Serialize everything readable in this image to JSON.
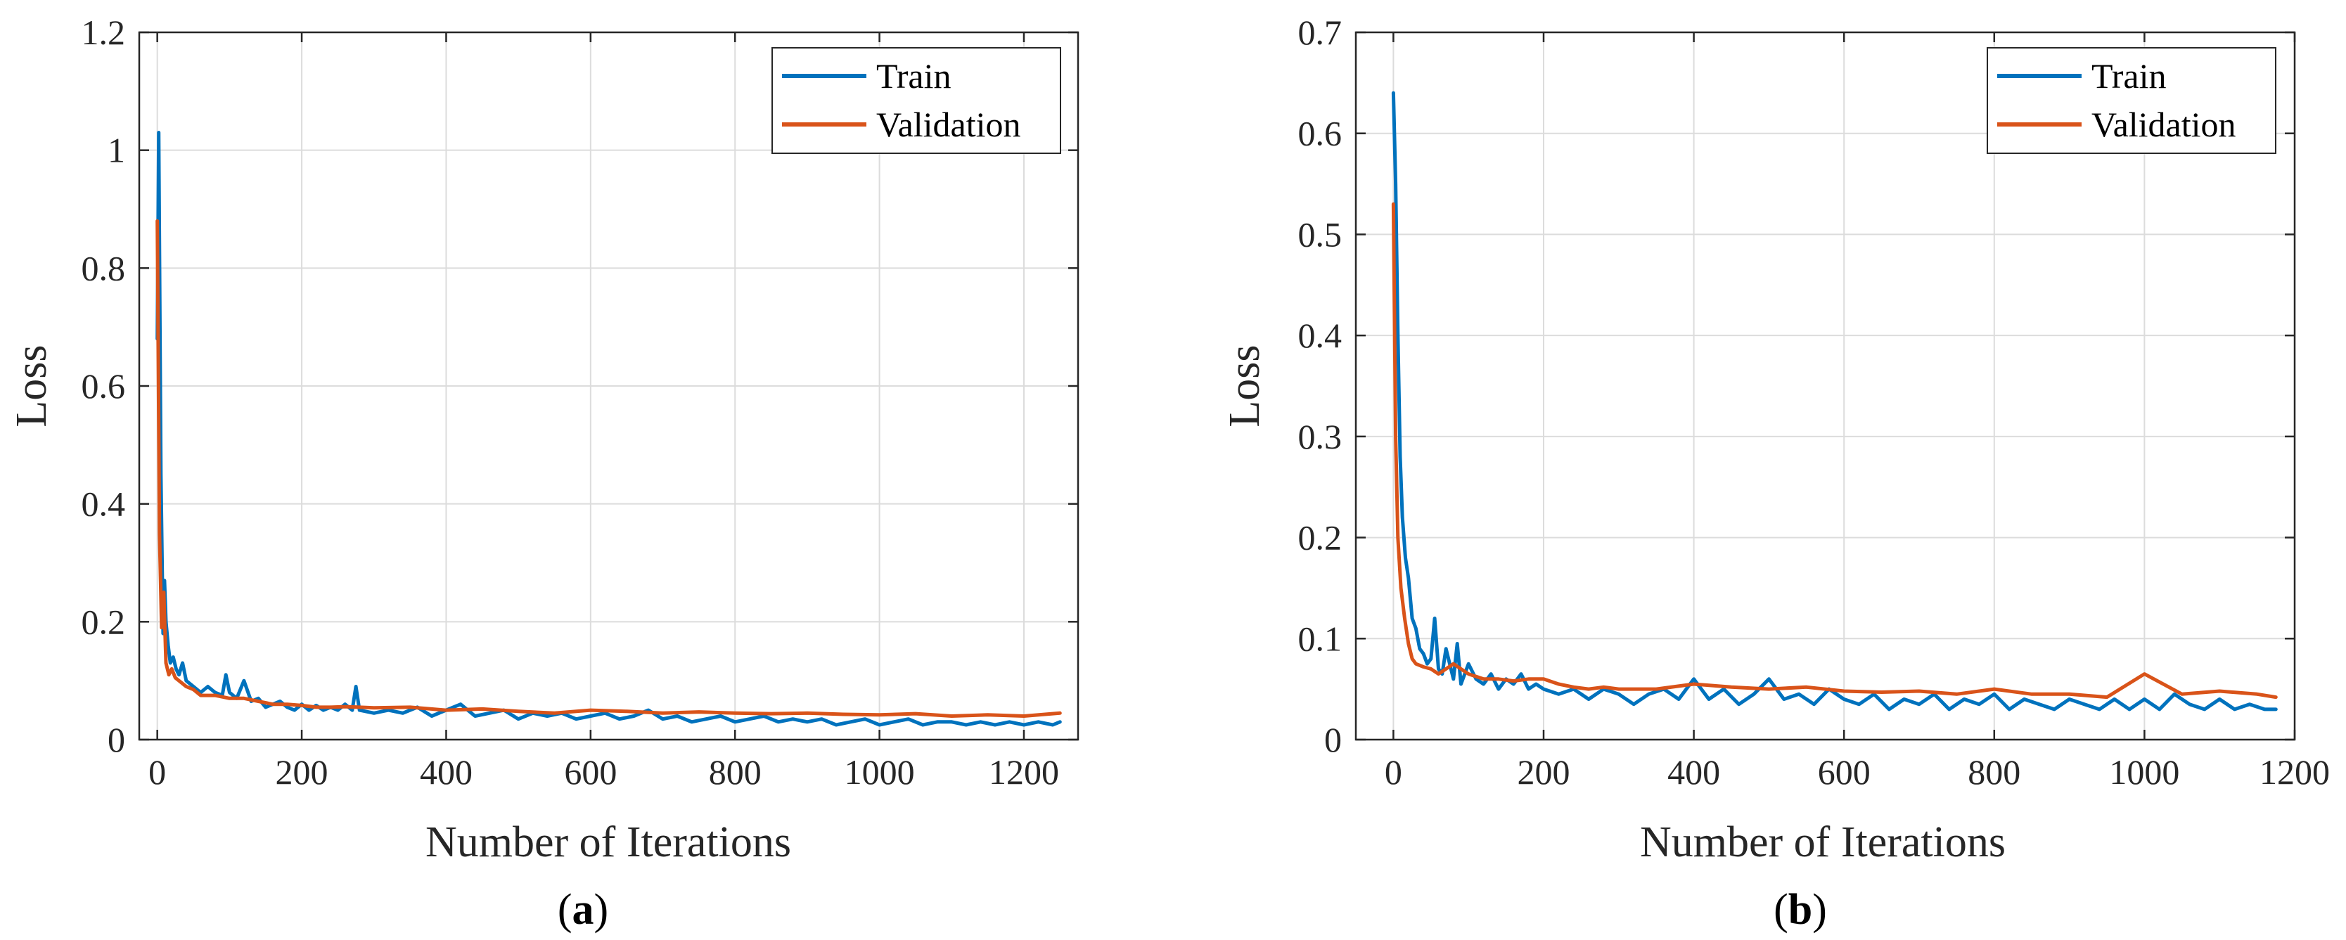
{
  "chart_data": [
    {
      "type": "line",
      "panel": "a",
      "caption": "(a)",
      "caption_letter": "a",
      "xlabel": "Number of Iterations",
      "ylabel": "Loss",
      "xlim": [
        -25,
        1275
      ],
      "ylim": [
        0,
        1.2
      ],
      "xticks": [
        0,
        200,
        400,
        600,
        800,
        1000,
        1200
      ],
      "xtick_labels": [
        "0",
        "200",
        "400",
        "600",
        "800",
        "1000",
        "1200"
      ],
      "yticks": [
        0,
        0.2,
        0.4,
        0.6,
        0.8,
        1,
        1.2
      ],
      "ytick_labels": [
        "0",
        "0.2",
        "0.4",
        "0.6",
        "0.8",
        "1",
        "1.2"
      ],
      "grid": true,
      "legend_position": "top-right",
      "series": [
        {
          "name": "Train",
          "color": "#0072BD",
          "x": [
            0,
            2,
            5,
            8,
            10,
            12,
            15,
            18,
            22,
            26,
            30,
            35,
            40,
            50,
            60,
            70,
            80,
            90,
            95,
            100,
            110,
            120,
            130,
            140,
            150,
            160,
            170,
            180,
            190,
            200,
            210,
            220,
            230,
            240,
            250,
            260,
            270,
            275,
            280,
            300,
            320,
            340,
            360,
            380,
            400,
            420,
            440,
            460,
            480,
            500,
            520,
            540,
            560,
            580,
            600,
            620,
            640,
            660,
            680,
            700,
            720,
            740,
            760,
            780,
            800,
            820,
            840,
            860,
            880,
            900,
            920,
            940,
            960,
            980,
            1000,
            1020,
            1040,
            1060,
            1080,
            1100,
            1120,
            1140,
            1160,
            1180,
            1200,
            1220,
            1240,
            1250
          ],
          "y": [
            0.68,
            1.03,
            0.45,
            0.18,
            0.27,
            0.2,
            0.16,
            0.13,
            0.14,
            0.12,
            0.11,
            0.13,
            0.1,
            0.09,
            0.08,
            0.09,
            0.08,
            0.075,
            0.11,
            0.08,
            0.07,
            0.1,
            0.065,
            0.07,
            0.055,
            0.06,
            0.065,
            0.055,
            0.05,
            0.06,
            0.05,
            0.058,
            0.05,
            0.055,
            0.05,
            0.06,
            0.05,
            0.09,
            0.05,
            0.045,
            0.05,
            0.045,
            0.055,
            0.04,
            0.05,
            0.06,
            0.04,
            0.045,
            0.05,
            0.035,
            0.045,
            0.04,
            0.045,
            0.035,
            0.04,
            0.045,
            0.035,
            0.04,
            0.05,
            0.035,
            0.04,
            0.03,
            0.035,
            0.04,
            0.03,
            0.035,
            0.04,
            0.03,
            0.035,
            0.03,
            0.035,
            0.025,
            0.03,
            0.035,
            0.025,
            0.03,
            0.035,
            0.025,
            0.03,
            0.03,
            0.025,
            0.03,
            0.025,
            0.03,
            0.025,
            0.03,
            0.025,
            0.03
          ]
        },
        {
          "name": "Validation",
          "color": "#D95319",
          "x": [
            0,
            3,
            6,
            9,
            12,
            16,
            20,
            25,
            30,
            40,
            50,
            60,
            80,
            100,
            120,
            140,
            160,
            180,
            200,
            220,
            240,
            260,
            280,
            300,
            350,
            400,
            450,
            500,
            550,
            600,
            650,
            700,
            750,
            800,
            850,
            900,
            950,
            1000,
            1050,
            1100,
            1150,
            1200,
            1250
          ],
          "y": [
            0.88,
            0.35,
            0.19,
            0.25,
            0.13,
            0.11,
            0.12,
            0.105,
            0.1,
            0.09,
            0.085,
            0.075,
            0.075,
            0.07,
            0.07,
            0.065,
            0.06,
            0.06,
            0.058,
            0.055,
            0.055,
            0.056,
            0.055,
            0.054,
            0.055,
            0.05,
            0.052,
            0.048,
            0.045,
            0.05,
            0.048,
            0.045,
            0.047,
            0.045,
            0.044,
            0.045,
            0.043,
            0.042,
            0.044,
            0.04,
            0.042,
            0.04,
            0.045
          ]
        }
      ]
    },
    {
      "type": "line",
      "panel": "b",
      "caption": "(b)",
      "caption_letter": "b",
      "xlabel": "Number of Iterations",
      "ylabel": "Loss",
      "xlim": [
        -50,
        1200
      ],
      "ylim": [
        0,
        0.7
      ],
      "xticks": [
        0,
        200,
        400,
        600,
        800,
        1000,
        1200
      ],
      "xtick_labels": [
        "0",
        "200",
        "400",
        "600",
        "800",
        "1000",
        "1200"
      ],
      "yticks": [
        0,
        0.1,
        0.2,
        0.3,
        0.4,
        0.5,
        0.6,
        0.7
      ],
      "ytick_labels": [
        "0",
        "0.1",
        "0.2",
        "0.3",
        "0.4",
        "0.5",
        "0.6",
        "0.7"
      ],
      "grid": true,
      "legend_position": "top-right",
      "series": [
        {
          "name": "Train",
          "color": "#0072BD",
          "x": [
            0,
            3,
            6,
            9,
            12,
            16,
            20,
            25,
            30,
            35,
            40,
            45,
            50,
            55,
            60,
            65,
            70,
            80,
            85,
            90,
            100,
            110,
            120,
            130,
            140,
            150,
            160,
            170,
            180,
            190,
            200,
            220,
            240,
            260,
            280,
            300,
            320,
            340,
            360,
            380,
            400,
            420,
            440,
            460,
            480,
            500,
            520,
            540,
            560,
            580,
            600,
            620,
            640,
            660,
            680,
            700,
            720,
            740,
            760,
            780,
            800,
            820,
            840,
            860,
            880,
            900,
            920,
            940,
            960,
            980,
            1000,
            1020,
            1040,
            1060,
            1080,
            1100,
            1120,
            1140,
            1160,
            1175
          ],
          "y": [
            0.64,
            0.55,
            0.4,
            0.28,
            0.22,
            0.18,
            0.16,
            0.12,
            0.11,
            0.09,
            0.085,
            0.075,
            0.08,
            0.12,
            0.07,
            0.065,
            0.09,
            0.06,
            0.095,
            0.055,
            0.075,
            0.06,
            0.055,
            0.065,
            0.05,
            0.06,
            0.055,
            0.065,
            0.05,
            0.055,
            0.05,
            0.045,
            0.05,
            0.04,
            0.05,
            0.045,
            0.035,
            0.045,
            0.05,
            0.04,
            0.06,
            0.04,
            0.05,
            0.035,
            0.045,
            0.06,
            0.04,
            0.045,
            0.035,
            0.05,
            0.04,
            0.035,
            0.045,
            0.03,
            0.04,
            0.035,
            0.045,
            0.03,
            0.04,
            0.035,
            0.045,
            0.03,
            0.04,
            0.035,
            0.03,
            0.04,
            0.035,
            0.03,
            0.04,
            0.03,
            0.04,
            0.03,
            0.045,
            0.035,
            0.03,
            0.04,
            0.03,
            0.035,
            0.03,
            0.03
          ]
        },
        {
          "name": "Validation",
          "color": "#D95319",
          "x": [
            0,
            3,
            6,
            10,
            15,
            20,
            25,
            30,
            40,
            50,
            60,
            70,
            80,
            90,
            100,
            120,
            140,
            160,
            180,
            200,
            220,
            240,
            260,
            280,
            300,
            350,
            400,
            450,
            500,
            550,
            600,
            650,
            700,
            750,
            800,
            850,
            900,
            950,
            1000,
            1050,
            1100,
            1150,
            1175
          ],
          "y": [
            0.53,
            0.3,
            0.2,
            0.15,
            0.12,
            0.095,
            0.08,
            0.075,
            0.072,
            0.07,
            0.065,
            0.07,
            0.075,
            0.07,
            0.065,
            0.06,
            0.06,
            0.058,
            0.06,
            0.06,
            0.055,
            0.052,
            0.05,
            0.052,
            0.05,
            0.05,
            0.055,
            0.052,
            0.05,
            0.052,
            0.048,
            0.047,
            0.048,
            0.045,
            0.05,
            0.045,
            0.045,
            0.042,
            0.065,
            0.045,
            0.048,
            0.045,
            0.042
          ]
        }
      ]
    }
  ]
}
